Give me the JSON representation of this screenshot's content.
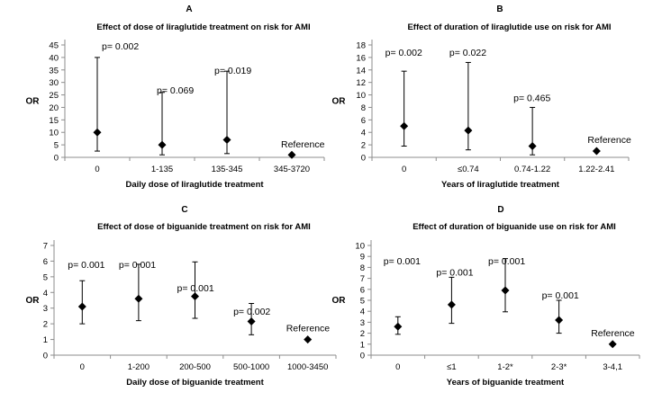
{
  "chart_data": [
    {
      "type": "scatter",
      "panel": "A",
      "title": "Effect of dose of liraglutide treatment on risk for AMI",
      "xlabel": "Daily dose of liraglutide treatment",
      "ylabel": "OR",
      "ylim": [
        0,
        45
      ],
      "ystep": 5,
      "categories": [
        "0",
        "1-135",
        "135-345",
        "345-3720"
      ],
      "values": [
        10,
        5,
        7,
        1
      ],
      "lower": [
        2.5,
        1,
        1.5,
        null
      ],
      "upper": [
        40,
        26,
        34.5,
        null
      ],
      "annotations": [
        "p= 0.002",
        "p= 0.069",
        "p= 0.019",
        "Reference"
      ]
    },
    {
      "type": "scatter",
      "panel": "B",
      "title": "Effect of duration of liraglutide use on risk for AMI",
      "xlabel": "Years of liraglutide treatment",
      "ylabel": "OR",
      "ylim": [
        0,
        18
      ],
      "ystep": 2,
      "categories": [
        "0",
        "≤0.74",
        "0.74-1.22",
        "1.22-2.41"
      ],
      "values": [
        5,
        4.3,
        1.8,
        1
      ],
      "lower": [
        1.8,
        1.2,
        0.4,
        null
      ],
      "upper": [
        13.8,
        15.2,
        8,
        null
      ],
      "annotations": [
        "p= 0.002",
        "p= 0.022",
        "p= 0.465",
        "Reference"
      ]
    },
    {
      "type": "scatter",
      "panel": "C",
      "title": "Effect of dose of biguanide treatment on risk for AMI",
      "xlabel": "Daily dose of biguanide treatment",
      "ylabel": "OR",
      "ylim": [
        0,
        7
      ],
      "ystep": 1,
      "categories": [
        "0",
        "1-200",
        "200-500",
        "500-1000",
        "1000-3450"
      ],
      "values": [
        3.1,
        3.6,
        3.75,
        2.15,
        1
      ],
      "lower": [
        2,
        2.2,
        2.35,
        1.3,
        null
      ],
      "upper": [
        4.75,
        5.8,
        5.95,
        3.3,
        null
      ],
      "annotations": [
        "p= 0.001",
        "p= 0.001",
        "p= 0.001",
        "p= 0.002",
        "Reference"
      ]
    },
    {
      "type": "scatter",
      "panel": "D",
      "title": "Effect of duration of biguanide use on risk for AMI",
      "xlabel": "Years of biguanide treatment",
      "ylabel": "OR",
      "ylim": [
        0,
        10
      ],
      "ystep": 1,
      "categories": [
        "0",
        "≤1",
        "1-2*",
        "2-3*",
        "3-4,1"
      ],
      "values": [
        2.6,
        4.6,
        5.9,
        3.2,
        1
      ],
      "lower": [
        1.9,
        2.9,
        3.95,
        2,
        null
      ],
      "upper": [
        3.5,
        7.1,
        8.8,
        5,
        null
      ],
      "annotations": [
        "p= 0.001",
        "p= 0.001",
        "p= 0.001",
        "p= 0.001",
        "Reference"
      ]
    }
  ]
}
